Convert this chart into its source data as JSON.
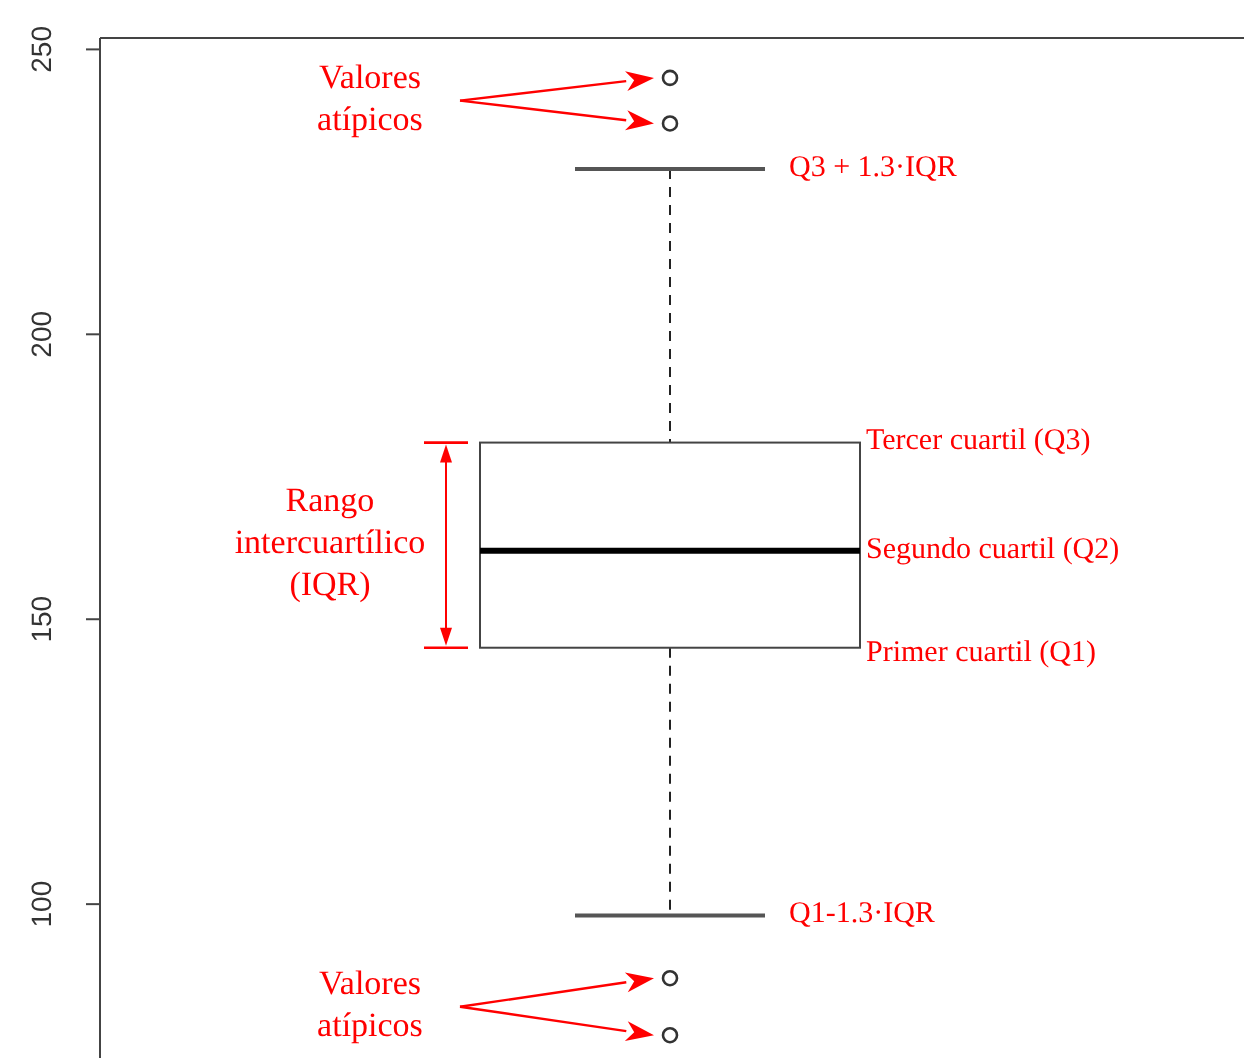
{
  "chart_data": {
    "type": "box",
    "categories": [
      null
    ],
    "boxes": [
      {
        "low": 98,
        "q1": 145,
        "median": 162,
        "q3": 181,
        "high": 229,
        "outliers": [
          245,
          237,
          87,
          77
        ]
      }
    ],
    "ylim": [
      73,
      252
    ],
    "yticks": [
      100,
      150,
      200,
      250
    ],
    "annotations": [
      "Valores\natípicos",
      "Q3 + 1.3·IQR",
      "Tercer cuartil (Q3)",
      "Segundo cuartil (Q2)",
      "Primer cuartil (Q1)",
      "Rango\nintercuartílico\n(IQR)",
      "Q1-1.3·IQR",
      "Valores\natípicos"
    ]
  }
}
